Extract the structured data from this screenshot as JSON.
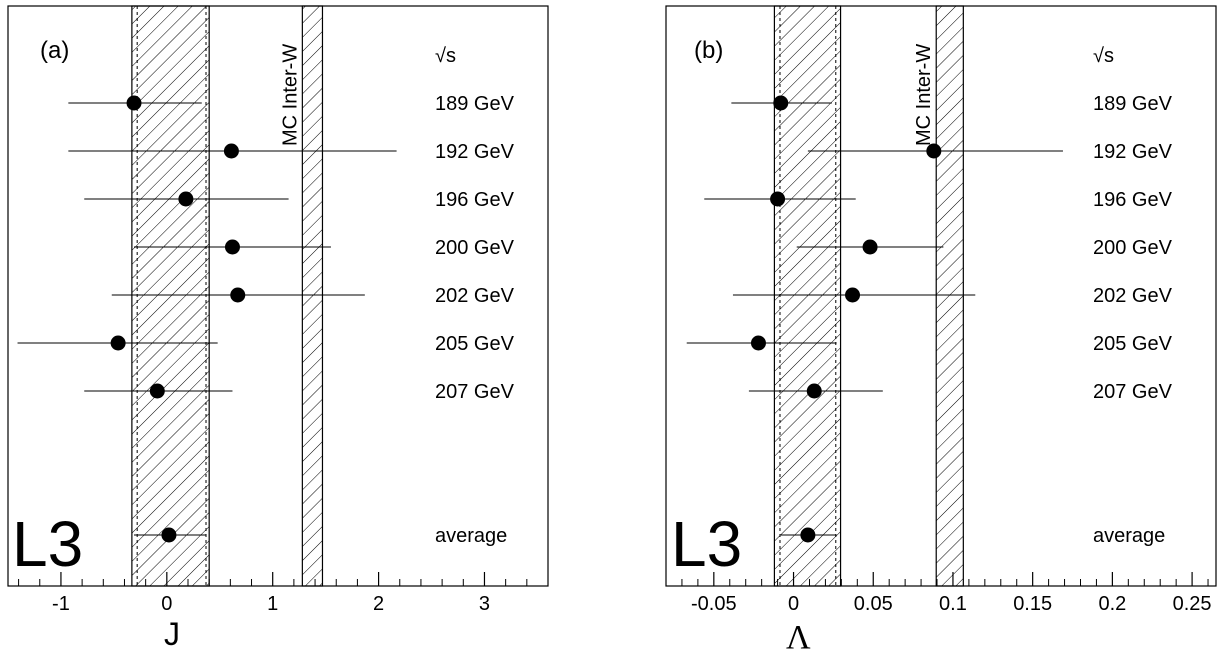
{
  "colors": {
    "ink": "#000000",
    "background": "#ffffff"
  },
  "chart_data": [
    {
      "type": "scatter",
      "panel_label": "(a)",
      "xlabel": "J",
      "logo": "L3",
      "header_label": "√s",
      "mc_label": "MC Inter-W",
      "xlim": [
        -1.5,
        3.6
      ],
      "xticks": [
        -1,
        0,
        1,
        2,
        3
      ],
      "tick_labels": [
        "-1",
        "0",
        "1",
        "2",
        "3"
      ],
      "minor_step": 0.2,
      "band_measured": {
        "x1": -0.33,
        "x2": 0.4,
        "inner_x1": -0.28,
        "inner_x2": 0.37
      },
      "band_mc": {
        "x1": 1.28,
        "x2": 1.47
      },
      "points": [
        {
          "label": "189 GeV",
          "x": -0.31,
          "xerr_low": -0.93,
          "xerr_high": 0.33
        },
        {
          "label": "192 GeV",
          "x": 0.61,
          "xerr_low": -0.93,
          "xerr_high": 2.17
        },
        {
          "label": "196 GeV",
          "x": 0.18,
          "xerr_low": -0.78,
          "xerr_high": 1.15
        },
        {
          "label": "200 GeV",
          "x": 0.62,
          "xerr_low": -0.31,
          "xerr_high": 1.55
        },
        {
          "label": "202 GeV",
          "x": 0.67,
          "xerr_low": -0.52,
          "xerr_high": 1.87
        },
        {
          "label": "205 GeV",
          "x": -0.46,
          "xerr_low": -1.41,
          "xerr_high": 0.48
        },
        {
          "label": "207 GeV",
          "x": -0.09,
          "xerr_low": -0.78,
          "xerr_high": 0.62
        },
        {
          "label": "average",
          "x": 0.02,
          "xerr_low": -0.31,
          "xerr_high": 0.37,
          "slot": 9
        }
      ]
    },
    {
      "type": "scatter",
      "panel_label": "(b)",
      "xlabel": "Λ",
      "logo": "L3",
      "header_label": "√s",
      "mc_label": "MC Inter-W",
      "xlim": [
        -0.08,
        0.265
      ],
      "xticks": [
        -0.05,
        0,
        0.05,
        0.1,
        0.15,
        0.2,
        0.25
      ],
      "tick_labels": [
        "-0.05",
        "0",
        "0.05",
        "0.1",
        "0.15",
        "0.2",
        "0.25"
      ],
      "minor_step": 0.01,
      "band_measured": {
        "x1": -0.012,
        "x2": 0.0295,
        "inner_x1": -0.0085,
        "inner_x2": 0.0265
      },
      "band_mc": {
        "x1": 0.0895,
        "x2": 0.1065
      },
      "points": [
        {
          "label": "189 GeV",
          "x": -0.008,
          "xerr_low": -0.039,
          "xerr_high": 0.024
        },
        {
          "label": "192 GeV",
          "x": 0.088,
          "xerr_low": 0.009,
          "xerr_high": 0.169
        },
        {
          "label": "196 GeV",
          "x": -0.01,
          "xerr_low": -0.056,
          "xerr_high": 0.039
        },
        {
          "label": "200 GeV",
          "x": 0.048,
          "xerr_low": 0.002,
          "xerr_high": 0.094
        },
        {
          "label": "202 GeV",
          "x": 0.037,
          "xerr_low": -0.038,
          "xerr_high": 0.114
        },
        {
          "label": "205 GeV",
          "x": -0.022,
          "xerr_low": -0.067,
          "xerr_high": 0.027
        },
        {
          "label": "207 GeV",
          "x": 0.013,
          "xerr_low": -0.028,
          "xerr_high": 0.056
        },
        {
          "label": "average",
          "x": 0.009,
          "xerr_low": -0.008,
          "xerr_high": 0.027,
          "slot": 9
        }
      ]
    }
  ]
}
